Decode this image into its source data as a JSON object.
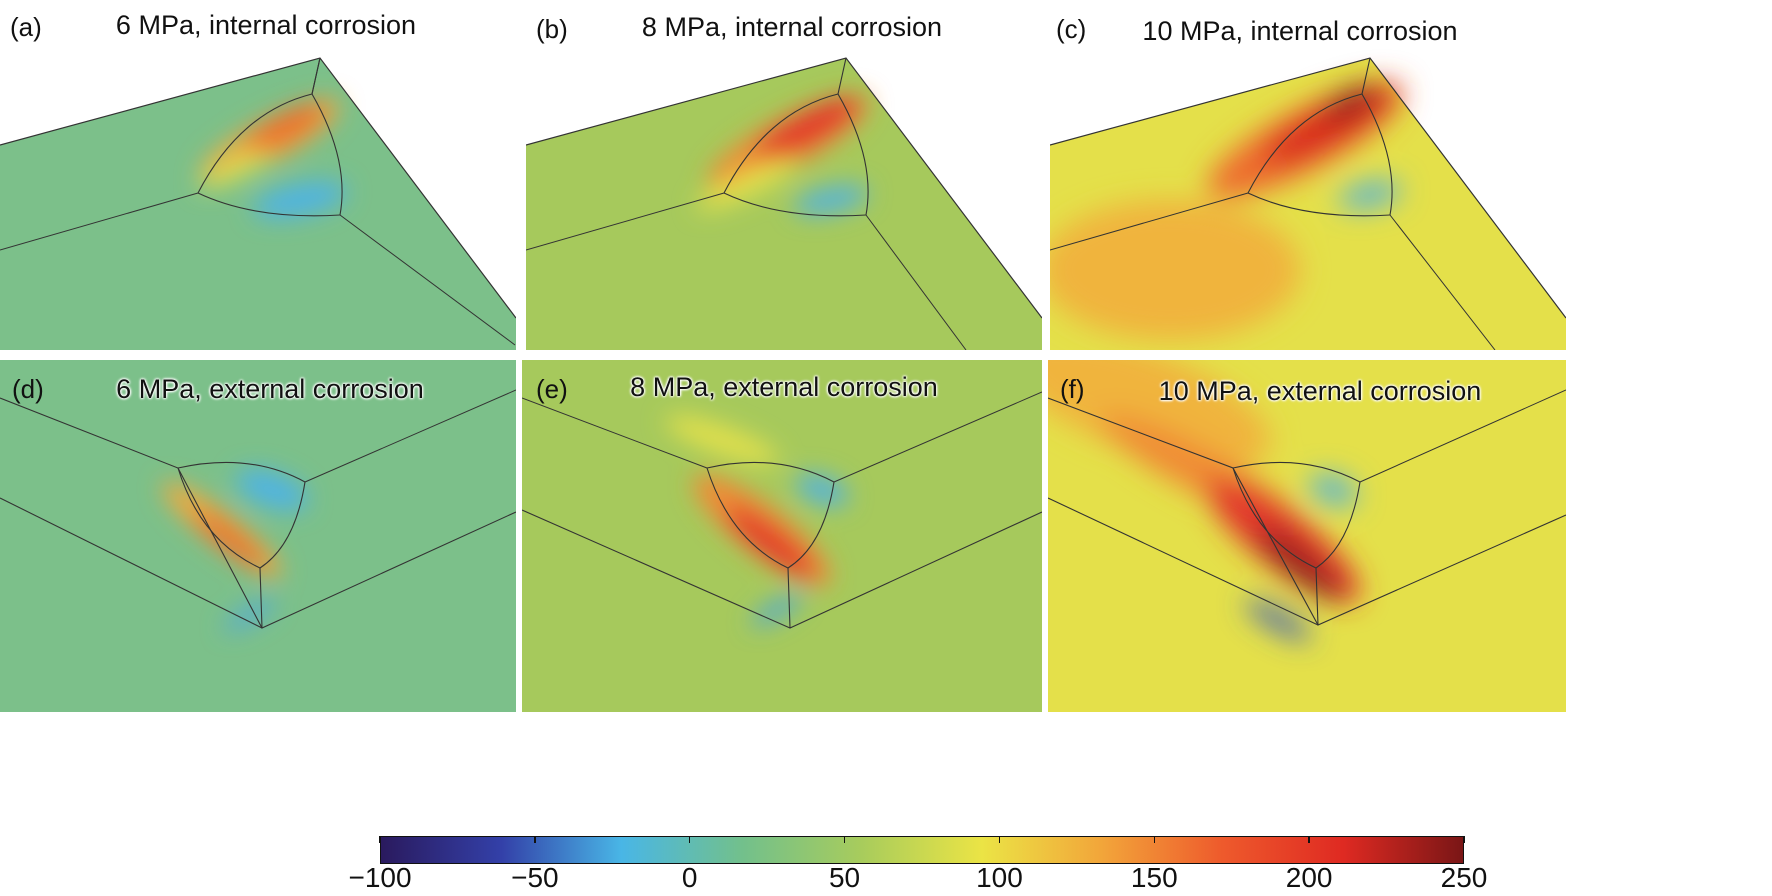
{
  "panels": [
    {
      "label": "(a)",
      "title": "6 MPa, internal corrosion"
    },
    {
      "label": "(b)",
      "title": "8 MPa, internal corrosion"
    },
    {
      "label": "(c)",
      "title": "10 MPa, internal corrosion"
    },
    {
      "label": "(d)",
      "title": "6 MPa, external corrosion"
    },
    {
      "label": "(e)",
      "title": "8 MPa, external corrosion"
    },
    {
      "label": "(f)",
      "title": "10 MPa, external corrosion"
    }
  ],
  "colorbar": {
    "min": -100,
    "max": 250,
    "ticks": [
      "−100",
      "−50",
      "0",
      "50",
      "100",
      "150",
      "200",
      "250"
    ],
    "tick_values": [
      -100,
      -50,
      0,
      50,
      100,
      150,
      200,
      250
    ],
    "colors": [
      "#2a1a5e",
      "#3340a8",
      "#49b6e6",
      "#72c08c",
      "#a8cc5c",
      "#ebe445",
      "#f2a53a",
      "#ee5a2c",
      "#df2a22",
      "#7a1616"
    ]
  },
  "panel_colors": {
    "background_6mpa": "#7cc08a",
    "background_8mpa": "#a6c95c",
    "background_10mpa": "#e4e04a"
  }
}
